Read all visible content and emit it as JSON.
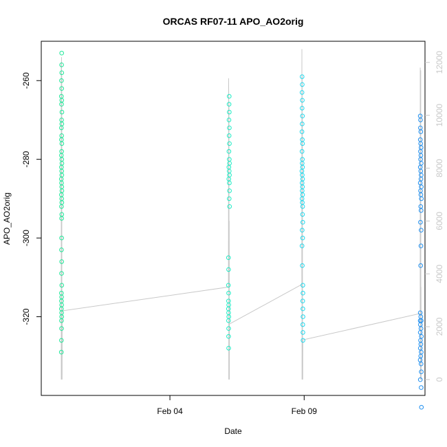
{
  "chart_data": {
    "type": "scatter",
    "title": "ORCAS RF07-11 APO_AO2orig",
    "xlabel": "Date",
    "ylabel": "APO_AO2orig",
    "x_ticks": [
      {
        "date": "2016-02-04",
        "label": "Feb 04"
      },
      {
        "date": "2016-02-09",
        "label": "Feb 09"
      }
    ],
    "xlim": [
      "2016-01-30T05:00",
      "2016-02-13T12:00"
    ],
    "ylim": [
      -340,
      -250
    ],
    "y_ticks": [
      -260,
      -280,
      -300,
      -320
    ],
    "y2lim": [
      -600,
      12800
    ],
    "y2_ticks": [
      0,
      2000,
      4000,
      6000,
      8000,
      10000,
      12000
    ],
    "y2_color": "#c8c8c8",
    "series": [
      {
        "color": "#1ee899",
        "points": [
          [
            "2016-01-30T23:14",
            -253
          ],
          [
            "2016-01-30T23:10",
            -256
          ],
          [
            "2016-01-30T23:20",
            -258
          ],
          [
            "2016-01-30T23:05",
            -260
          ],
          [
            "2016-01-30T23:15",
            -262
          ],
          [
            "2016-01-30T23:00",
            -264
          ],
          [
            "2016-01-30T23:18",
            -265
          ],
          [
            "2016-01-30T23:08",
            -266
          ],
          [
            "2016-01-30T23:25",
            -268
          ],
          [
            "2016-01-30T23:12",
            -270
          ],
          [
            "2016-01-30T23:22",
            -271
          ],
          [
            "2016-01-30T23:02",
            -272
          ],
          [
            "2016-01-30T23:16",
            -274
          ],
          [
            "2016-01-30T23:06",
            -275
          ],
          [
            "2016-01-30T23:24",
            -276
          ],
          [
            "2016-01-30T23:10",
            -278
          ],
          [
            "2016-01-30T23:00",
            -279
          ],
          [
            "2016-01-30T23:18",
            -280
          ],
          [
            "2016-01-30T23:26",
            -281
          ],
          [
            "2016-01-30T23:04",
            -282
          ],
          [
            "2016-01-30T23:14",
            -283
          ],
          [
            "2016-01-30T23:22",
            -284
          ],
          [
            "2016-01-30T22:58",
            -285
          ],
          [
            "2016-01-30T23:08",
            -286
          ],
          [
            "2016-01-30T23:20",
            -287
          ],
          [
            "2016-01-30T23:28",
            -288
          ],
          [
            "2016-01-30T23:02",
            -289
          ],
          [
            "2016-01-30T23:16",
            -290
          ],
          [
            "2016-01-30T23:24",
            -291
          ],
          [
            "2016-01-30T23:06",
            -292
          ],
          [
            "2016-01-30T23:20",
            -294
          ],
          [
            "2016-01-30T23:10",
            -295
          ],
          [
            "2016-01-30T23:12",
            -300
          ],
          [
            "2016-01-30T23:04",
            -303
          ],
          [
            "2016-01-30T23:14",
            -306
          ],
          [
            "2016-01-30T23:08",
            -309
          ],
          [
            "2016-01-30T23:18",
            -312
          ],
          [
            "2016-01-30T23:00",
            -314
          ],
          [
            "2016-01-30T23:12",
            -315
          ],
          [
            "2016-01-30T23:06",
            -316
          ],
          [
            "2016-01-30T23:16",
            -317
          ],
          [
            "2016-01-30T23:02",
            -318
          ],
          [
            "2016-01-30T23:10",
            -319
          ],
          [
            "2016-01-30T23:14",
            -320
          ],
          [
            "2016-01-30T23:04",
            -321
          ],
          [
            "2016-01-30T23:08",
            -323
          ],
          [
            "2016-01-30T23:00",
            -326
          ],
          [
            "2016-01-30T22:58",
            -329
          ]
        ]
      },
      {
        "color": "#1eebc4",
        "points": [
          [
            "2016-02-06T04:58",
            -264
          ],
          [
            "2016-02-06T04:52",
            -266
          ],
          [
            "2016-02-06T05:02",
            -268
          ],
          [
            "2016-02-06T04:48",
            -270
          ],
          [
            "2016-02-06T05:06",
            -272
          ],
          [
            "2016-02-06T04:55",
            -274
          ],
          [
            "2016-02-06T05:10",
            -276
          ],
          [
            "2016-02-06T04:44",
            -278
          ],
          [
            "2016-02-06T05:04",
            -280
          ],
          [
            "2016-02-06T05:14",
            -281
          ],
          [
            "2016-02-06T04:40",
            -282
          ],
          [
            "2016-02-06T04:58",
            -283
          ],
          [
            "2016-02-06T05:12",
            -284
          ],
          [
            "2016-02-06T04:36",
            -285
          ],
          [
            "2016-02-06T05:08",
            -286
          ],
          [
            "2016-02-06T05:16",
            -288
          ],
          [
            "2016-02-06T05:00",
            -290
          ],
          [
            "2016-02-06T05:18",
            -292
          ],
          [
            "2016-02-06T04:20",
            -305
          ],
          [
            "2016-02-06T04:26",
            -308
          ],
          [
            "2016-02-06T04:16",
            -312
          ],
          [
            "2016-02-06T04:30",
            -314
          ],
          [
            "2016-02-06T04:22",
            -316
          ],
          [
            "2016-02-06T04:34",
            -317
          ],
          [
            "2016-02-06T04:18",
            -318
          ],
          [
            "2016-02-06T04:28",
            -319
          ],
          [
            "2016-02-06T04:38",
            -320
          ],
          [
            "2016-02-06T04:24",
            -321
          ],
          [
            "2016-02-06T04:32",
            -323
          ],
          [
            "2016-02-06T04:26",
            -325
          ],
          [
            "2016-02-06T04:30",
            -328
          ]
        ]
      },
      {
        "color": "#1ed9ee",
        "points": [
          [
            "2016-02-08T22:10",
            -259
          ],
          [
            "2016-02-08T22:16",
            -261
          ],
          [
            "2016-02-08T22:04",
            -263
          ],
          [
            "2016-02-08T22:22",
            -265
          ],
          [
            "2016-02-08T22:08",
            -267
          ],
          [
            "2016-02-08T22:28",
            -269
          ],
          [
            "2016-02-08T22:14",
            -271
          ],
          [
            "2016-02-08T22:02",
            -273
          ],
          [
            "2016-02-08T22:20",
            -275
          ],
          [
            "2016-02-08T22:32",
            -276
          ],
          [
            "2016-02-08T22:06",
            -278
          ],
          [
            "2016-02-08T22:24",
            -280
          ],
          [
            "2016-02-08T22:12",
            -281
          ],
          [
            "2016-02-08T22:30",
            -282
          ],
          [
            "2016-02-08T22:00",
            -283
          ],
          [
            "2016-02-08T22:18",
            -284
          ],
          [
            "2016-02-08T22:34",
            -285
          ],
          [
            "2016-02-08T22:08",
            -286
          ],
          [
            "2016-02-08T22:26",
            -287
          ],
          [
            "2016-02-08T22:14",
            -288
          ],
          [
            "2016-02-08T22:36",
            -289
          ],
          [
            "2016-02-08T22:04",
            -290
          ],
          [
            "2016-02-08T22:22",
            -291
          ],
          [
            "2016-02-08T22:40",
            -292
          ],
          [
            "2016-02-08T22:30",
            -294
          ],
          [
            "2016-02-08T22:46",
            -296
          ],
          [
            "2016-02-08T22:12",
            -298
          ],
          [
            "2016-02-08T22:38",
            -300
          ],
          [
            "2016-02-08T22:06",
            -302
          ],
          [
            "2016-02-08T22:20",
            -307
          ],
          [
            "2016-02-08T22:48",
            -312
          ],
          [
            "2016-02-08T22:54",
            -314
          ],
          [
            "2016-02-08T22:44",
            -316
          ],
          [
            "2016-02-08T22:50",
            -318
          ],
          [
            "2016-02-08T22:56",
            -320
          ],
          [
            "2016-02-08T22:46",
            -322
          ],
          [
            "2016-02-08T22:52",
            -324
          ],
          [
            "2016-02-08T22:58",
            -326
          ]
        ]
      },
      {
        "color": "#1e8ff0",
        "points": [
          [
            "2016-02-13T07:44",
            -269
          ],
          [
            "2016-02-13T08:00",
            -270
          ],
          [
            "2016-02-13T07:52",
            -272
          ],
          [
            "2016-02-13T08:16",
            -273
          ],
          [
            "2016-02-13T07:48",
            -275
          ],
          [
            "2016-02-13T08:08",
            -276
          ],
          [
            "2016-02-13T08:28",
            -277
          ],
          [
            "2016-02-13T07:56",
            -278
          ],
          [
            "2016-02-13T08:20",
            -279
          ],
          [
            "2016-02-13T08:04",
            -280
          ],
          [
            "2016-02-13T08:36",
            -281
          ],
          [
            "2016-02-13T07:50",
            -282
          ],
          [
            "2016-02-13T08:12",
            -283
          ],
          [
            "2016-02-13T08:32",
            -284
          ],
          [
            "2016-02-13T08:24",
            -285
          ],
          [
            "2016-02-13T07:46",
            -286
          ],
          [
            "2016-02-13T08:40",
            -287
          ],
          [
            "2016-02-13T08:02",
            -288
          ],
          [
            "2016-02-13T08:18",
            -289
          ],
          [
            "2016-02-13T08:44",
            -290
          ],
          [
            "2016-02-13T08:10",
            -292
          ],
          [
            "2016-02-13T08:30",
            -293
          ],
          [
            "2016-02-13T07:58",
            -296
          ],
          [
            "2016-02-13T08:34",
            -298
          ],
          [
            "2016-02-13T08:22",
            -302
          ],
          [
            "2016-02-13T08:06",
            -307
          ],
          [
            "2016-02-13T07:46",
            -319
          ],
          [
            "2016-02-13T08:14",
            -320
          ],
          [
            "2016-02-13T07:40",
            -321
          ],
          [
            "2016-02-13T08:38",
            -321
          ],
          [
            "2016-02-13T07:54",
            -322
          ],
          [
            "2016-02-13T08:26",
            -323
          ],
          [
            "2016-02-13T07:44",
            -324
          ],
          [
            "2016-02-13T08:46",
            -325
          ],
          [
            "2016-02-13T08:02",
            -326
          ],
          [
            "2016-02-13T08:20",
            -327
          ],
          [
            "2016-02-13T07:50",
            -328
          ],
          [
            "2016-02-13T08:36",
            -329
          ],
          [
            "2016-02-13T08:10",
            -330
          ],
          [
            "2016-02-13T07:42",
            -331
          ],
          [
            "2016-02-13T08:28",
            -332
          ],
          [
            "2016-02-13T08:40",
            -334
          ],
          [
            "2016-02-13T07:48",
            -336
          ],
          [
            "2016-02-13T08:34",
            -338
          ],
          [
            "2016-02-13T08:48",
            -343
          ]
        ]
      }
    ],
    "altitude": {
      "color": "#c8c8c8",
      "points": [
        [
          "2016-01-30T22:52",
          0
        ],
        [
          "2016-01-30T22:54",
          12000
        ],
        [
          "2016-01-30T23:00",
          12000
        ],
        [
          "2016-01-30T23:04",
          0
        ],
        [
          "2016-01-30T23:08",
          12200
        ],
        [
          "2016-01-30T23:14",
          0
        ],
        [
          "2016-01-30T23:20",
          11500
        ],
        [
          "2016-01-30T23:26",
          0
        ],
        [
          "2016-01-30T23:30",
          1500
        ],
        [
          "2016-01-30T23:38",
          0
        ],
        [
          "2016-01-30T23:42",
          2600
        ],
        [
          "2016-02-06T04:20",
          3500
        ],
        [
          "2016-02-06T04:28",
          11400
        ],
        [
          "2016-02-06T04:34",
          10800
        ],
        [
          "2016-02-06T04:38",
          0
        ],
        [
          "2016-02-06T04:44",
          10500
        ],
        [
          "2016-02-06T04:52",
          0
        ],
        [
          "2016-02-06T05:00",
          6000
        ],
        [
          "2016-02-06T05:04",
          2100
        ],
        [
          "2016-02-06T05:08",
          0
        ],
        [
          "2016-02-06T05:10",
          2100
        ],
        [
          "2016-02-08T21:54",
          3600
        ],
        [
          "2016-02-08T22:00",
          12500
        ],
        [
          "2016-02-08T22:06",
          0
        ],
        [
          "2016-02-08T22:12",
          11500
        ],
        [
          "2016-02-08T22:18",
          0
        ],
        [
          "2016-02-08T22:24",
          10000
        ],
        [
          "2016-02-08T22:30",
          0
        ],
        [
          "2016-02-08T22:36",
          1500
        ],
        [
          "2016-02-08T22:42",
          0
        ],
        [
          "2016-02-08T22:46",
          1500
        ],
        [
          "2016-02-13T07:40",
          2500
        ],
        [
          "2016-02-13T07:46",
          11800
        ],
        [
          "2016-02-13T07:50",
          11600
        ],
        [
          "2016-02-13T07:56",
          0
        ],
        [
          "2016-02-13T08:06",
          11400
        ],
        [
          "2016-02-13T08:12",
          11700
        ],
        [
          "2016-02-13T08:18",
          0
        ],
        [
          "2016-02-13T08:26",
          3500
        ],
        [
          "2016-02-13T08:32",
          0
        ]
      ]
    }
  }
}
